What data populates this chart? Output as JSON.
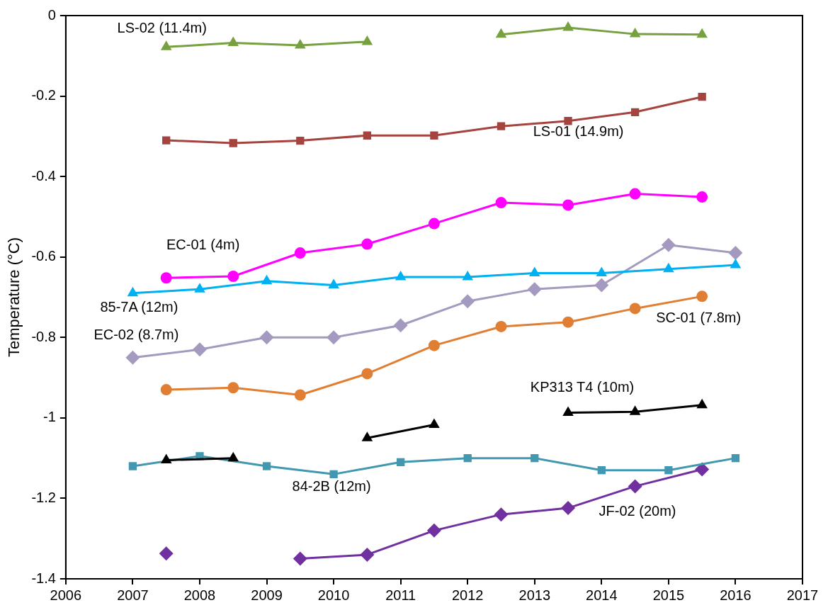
{
  "chart_data": {
    "type": "line",
    "ylabel": "Temperature (°C)",
    "xlim": [
      2006,
      2017
    ],
    "xticks": [
      2006,
      2007,
      2008,
      2009,
      2010,
      2011,
      2012,
      2013,
      2014,
      2015,
      2016,
      2017
    ],
    "ylim": [
      -1.4,
      0
    ],
    "yticks": [
      -1.4,
      -1.2,
      -1,
      -0.8,
      -0.6,
      -0.4,
      -0.2,
      0
    ],
    "grid": false,
    "legend": false,
    "line_style": "solid",
    "series": [
      {
        "name": "LS-02 (11.4m)",
        "color": "#77a040",
        "marker": "triangle",
        "x": [
          2007.5,
          2008.5,
          2009.5,
          2010.5,
          2011.5,
          2012.5,
          2013.5,
          2014.5,
          2015.5
        ],
        "values": [
          -0.078,
          -0.068,
          -0.074,
          -0.065,
          null,
          -0.047,
          -0.03,
          -0.046,
          -0.047
        ]
      },
      {
        "name": "LS-01 (14.9m)",
        "color": "#a5433f",
        "marker": "square",
        "x": [
          2007.5,
          2008.5,
          2009.5,
          2010.5,
          2011.5,
          2012.5,
          2013.5,
          2014.5,
          2015.5
        ],
        "values": [
          -0.31,
          -0.317,
          -0.311,
          -0.298,
          -0.298,
          -0.275,
          -0.262,
          -0.24,
          -0.202
        ]
      },
      {
        "name": "EC-01 (4m)",
        "color": "#ff00ff",
        "marker": "circle",
        "x": [
          2007.5,
          2008.5,
          2009.5,
          2010.5,
          2011.5,
          2012.5,
          2013.5,
          2014.5,
          2015.5
        ],
        "values": [
          -0.652,
          -0.648,
          -0.59,
          -0.568,
          -0.517,
          -0.465,
          -0.471,
          -0.443,
          -0.451
        ]
      },
      {
        "name": "85-7A (12m)",
        "color": "#00b0f0",
        "marker": "triangle",
        "x": [
          2007,
          2008,
          2009,
          2010,
          2011,
          2012,
          2013,
          2014,
          2015,
          2016
        ],
        "values": [
          -0.69,
          -0.68,
          -0.66,
          -0.67,
          -0.65,
          -0.65,
          -0.64,
          -0.64,
          -0.63,
          -0.62
        ]
      },
      {
        "name": "EC-02 (8.7m)",
        "color": "#a499be",
        "marker": "diamond",
        "x": [
          2007,
          2008,
          2009,
          2010,
          2011,
          2012,
          2013,
          2014,
          2015,
          2016
        ],
        "values": [
          -0.85,
          -0.83,
          -0.8,
          -0.8,
          -0.77,
          -0.71,
          -0.68,
          -0.67,
          -0.57,
          -0.59
        ]
      },
      {
        "name": "SC-01 (7.8m)",
        "color": "#e07f34",
        "marker": "circle",
        "x": [
          2007.5,
          2008.5,
          2009.5,
          2010.5,
          2011.5,
          2012.5,
          2013.5,
          2014.5,
          2015.5
        ],
        "values": [
          -0.93,
          -0.925,
          -0.943,
          -0.89,
          -0.82,
          -0.773,
          -0.762,
          -0.728,
          -0.698
        ]
      },
      {
        "name": "KP313 T4 (10m)",
        "color": "#000000",
        "marker": "triangle",
        "x": [
          2007.5,
          2008.5,
          2009.5,
          2010.5,
          2011.5,
          2012.5,
          2013.5,
          2014.5,
          2015.5
        ],
        "values": [
          -1.105,
          -1.1,
          null,
          -1.05,
          -1.017,
          null,
          -0.987,
          -0.985,
          -0.968
        ]
      },
      {
        "name": "84-2B (12m)",
        "color": "#4198b0",
        "marker": "square",
        "x": [
          2007,
          2008,
          2009,
          2010,
          2011,
          2012,
          2013,
          2014,
          2015,
          2016
        ],
        "values": [
          -1.12,
          -1.095,
          -1.12,
          -1.14,
          -1.11,
          -1.1,
          -1.1,
          -1.13,
          -1.13,
          -1.1
        ]
      },
      {
        "name": "JF-02 (20m)",
        "color": "#7030a0",
        "marker": "diamond",
        "x": [
          2007.5,
          2008.5,
          2009.5,
          2010.5,
          2011.5,
          2012.5,
          2013.5,
          2014.5,
          2015.5
        ],
        "values": [
          -1.337,
          null,
          -1.35,
          -1.34,
          -1.28,
          -1.24,
          -1.224,
          -1.17,
          -1.128
        ]
      }
    ]
  }
}
